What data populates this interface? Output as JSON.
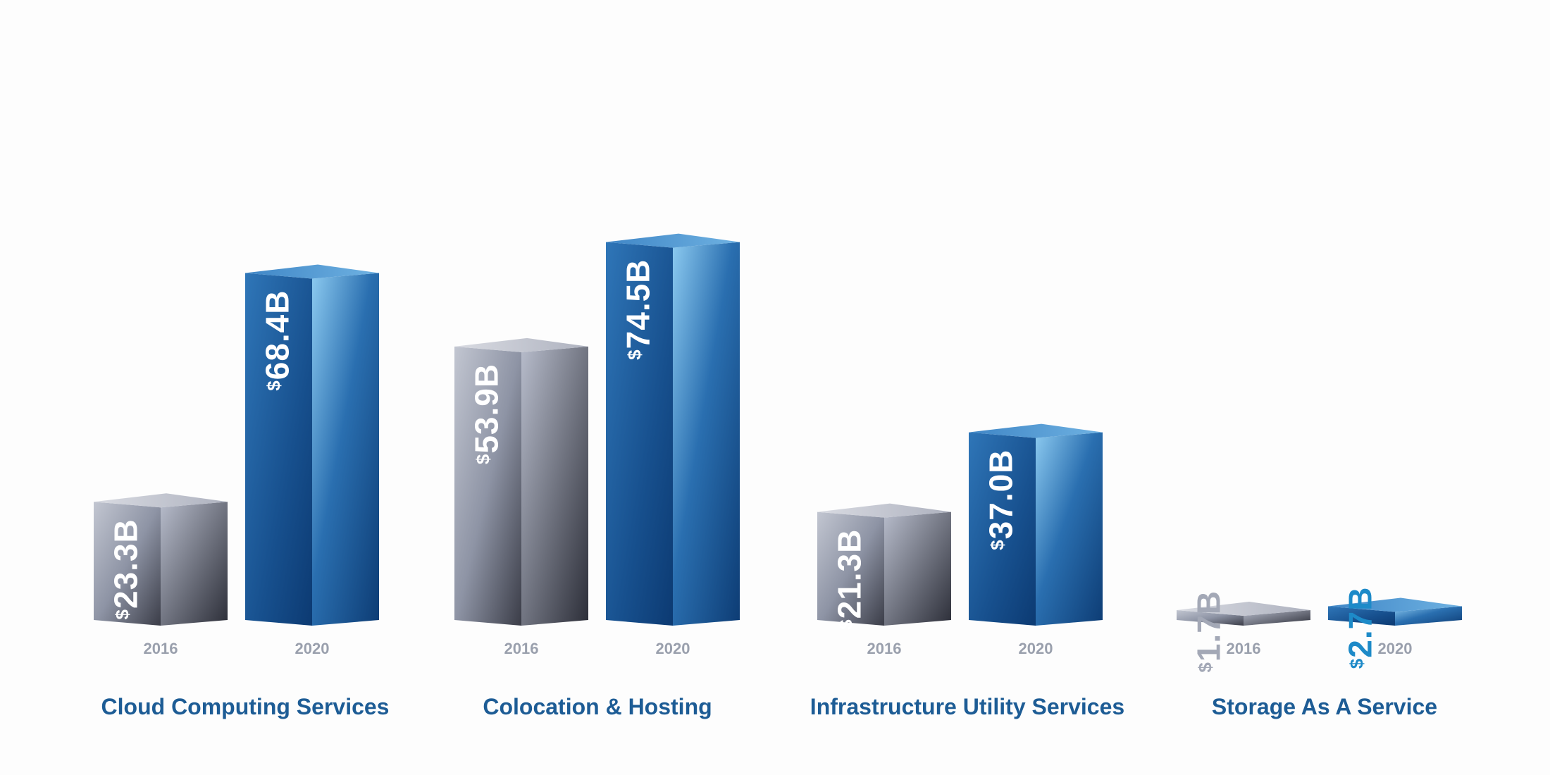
{
  "chart_data": {
    "type": "bar",
    "style": "3d-columns",
    "categories": [
      "Cloud Computing Services",
      "Colocation & Hosting",
      "Infrastructure Utility Services",
      "Storage As A Service"
    ],
    "x_labels": [
      "2016",
      "2020"
    ],
    "series": [
      {
        "name": "2016",
        "values": [
          23.3,
          53.9,
          21.3,
          1.7
        ],
        "labels": [
          "23.3B",
          "53.9B",
          "21.3B",
          "1.7B"
        ]
      },
      {
        "name": "2020",
        "values": [
          68.4,
          74.5,
          37.0,
          2.7
        ],
        "labels": [
          "68.4B",
          "74.5B",
          "37.0B",
          "2.7B"
        ]
      }
    ],
    "currency_symbol": "$",
    "title": "",
    "xlabel": "",
    "ylabel": "",
    "unit": "billions USD",
    "ylim": [
      0,
      80
    ],
    "grid": false,
    "legend": "none",
    "colors": {
      "2016": "#8f94a3",
      "2020": "#1f5f9e",
      "category_label": "#1d5c95",
      "year_label": "#9aa0ad"
    }
  }
}
